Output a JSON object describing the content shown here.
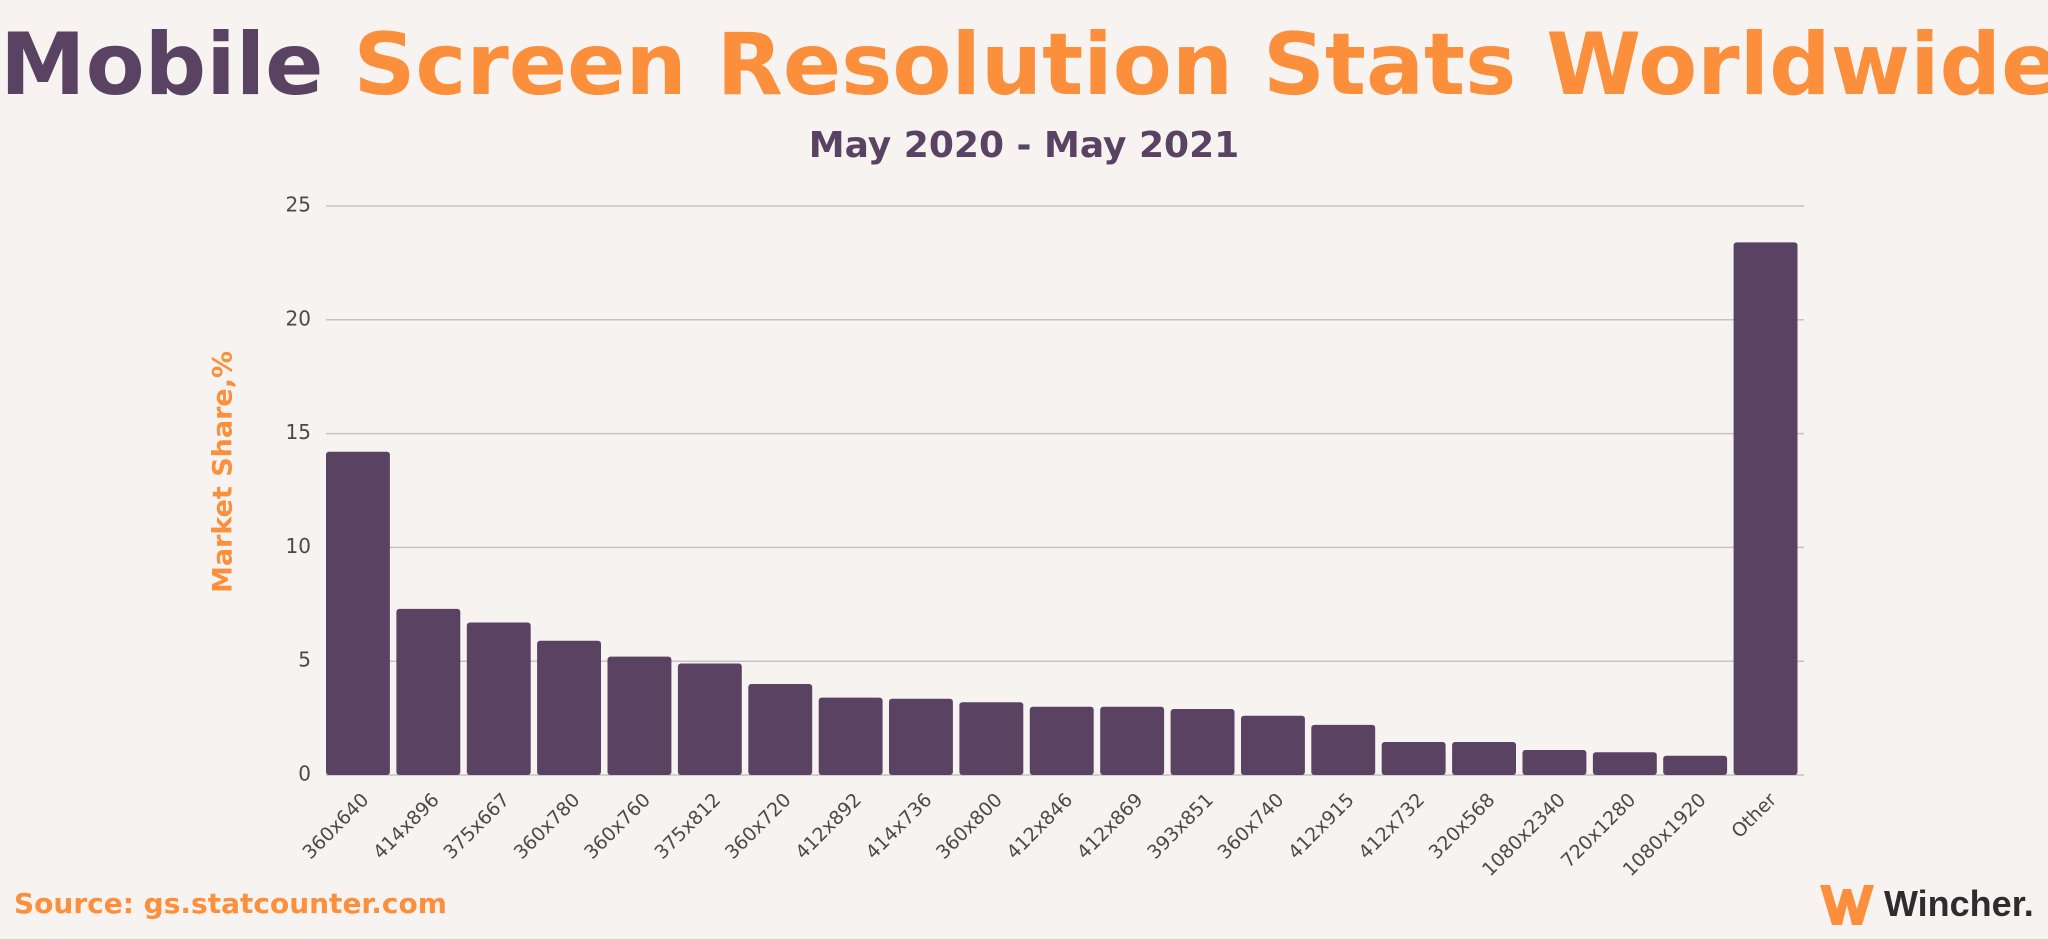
{
  "header": {
    "title_part1": "Mobile",
    "title_part2": "Screen Resolution Stats Worldwide",
    "subtitle": "May 2020 - May 2021"
  },
  "footer": {
    "source": "Source: gs.statcounter.com",
    "brand": "Wincher."
  },
  "colors": {
    "bar": "#5a4262",
    "accent": "#fb8f3c",
    "grid": "#c8c3c3",
    "tick_text": "#4a4a4a"
  },
  "chart_data": {
    "type": "bar",
    "title": "Mobile Screen Resolution Stats Worldwide",
    "subtitle": "May 2020 - May 2021",
    "xlabel": "",
    "ylabel": "Market Share,%",
    "ylim": [
      0,
      25
    ],
    "yticks": [
      0,
      5,
      10,
      15,
      20,
      25
    ],
    "grid": true,
    "categories": [
      "360x640",
      "414x896",
      "375x667",
      "360x780",
      "360x760",
      "375x812",
      "360x720",
      "412x892",
      "414x736",
      "360x800",
      "412x846",
      "412x869",
      "393x851",
      "360x740",
      "412x915",
      "412x732",
      "320x568",
      "1080x2340",
      "720x1280",
      "1080x1920",
      "Other"
    ],
    "values": [
      14.2,
      7.3,
      6.7,
      5.9,
      5.2,
      4.9,
      4.0,
      3.4,
      3.35,
      3.2,
      3.0,
      3.0,
      2.9,
      2.6,
      2.2,
      1.45,
      1.45,
      1.1,
      1.0,
      0.85,
      23.4
    ]
  }
}
